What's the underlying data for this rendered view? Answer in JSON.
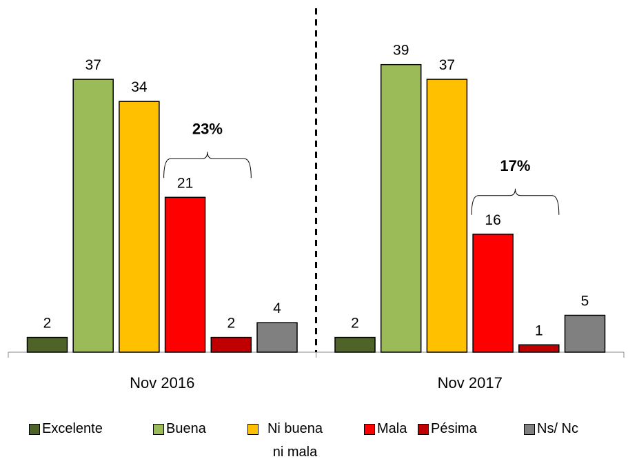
{
  "chart_data": {
    "type": "bar",
    "categories": [
      "Nov 2016",
      "Nov 2017"
    ],
    "series": [
      {
        "name": "Excelente",
        "color": "#4f6228",
        "values": [
          2,
          2
        ]
      },
      {
        "name": "Buena",
        "color": "#9bbb59",
        "values": [
          37,
          39
        ]
      },
      {
        "name": "Ni buena ni mala",
        "color": "#ffc000",
        "values": [
          34,
          37
        ]
      },
      {
        "name": "Mala",
        "color": "#ff0000",
        "values": [
          21,
          16
        ]
      },
      {
        "name": "Pésima",
        "color": "#c00000",
        "values": [
          2,
          1
        ]
      },
      {
        "name": "Ns/ Nc",
        "color": "#808080",
        "values": [
          4,
          5
        ]
      }
    ],
    "annotations": [
      "23%",
      "17%"
    ],
    "ylim": [
      0,
      40
    ],
    "legend": "bottom"
  }
}
